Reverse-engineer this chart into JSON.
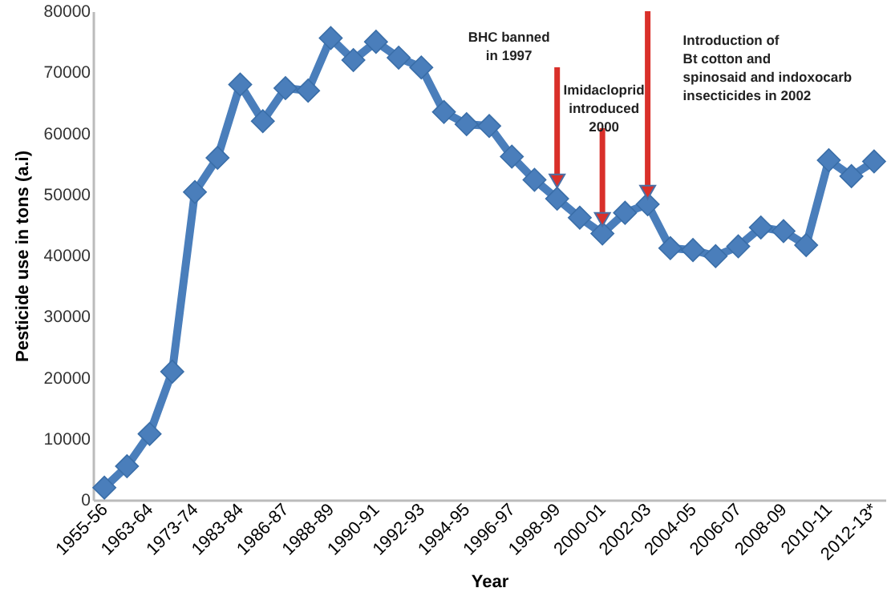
{
  "chart_data": {
    "type": "line",
    "xlabel": "Year",
    "ylabel": "Pesticide use in tons (a.i)",
    "categories": [
      "1955-56",
      null,
      "1963-64",
      null,
      "1973-74",
      null,
      "1983-84",
      null,
      "1986-87",
      null,
      "1988-89",
      null,
      "1990-91",
      null,
      "1992-93",
      null,
      "1994-95",
      null,
      "1996-97",
      null,
      "1998-99",
      null,
      "2000-01",
      null,
      "2002-03",
      null,
      "2004-05",
      null,
      "2006-07",
      null,
      "2008-09",
      null,
      "2010-11",
      null,
      "2012-13*"
    ],
    "series": [
      {
        "color": "#4a7ebb",
        "values": [
          2000,
          5500,
          10800,
          21000,
          50400,
          56000,
          68000,
          62000,
          67400,
          67000,
          75600,
          72000,
          75000,
          72400,
          70800,
          63500,
          61500,
          61200,
          56200,
          52400,
          49300,
          46200,
          43600,
          47000,
          48400,
          41200,
          40900,
          39900,
          41500,
          44600,
          44000,
          41700,
          55600,
          53000,
          55400
        ]
      }
    ],
    "ylim": [
      0,
      80000
    ],
    "yticks": [
      0,
      10000,
      20000,
      30000,
      40000,
      50000,
      60000,
      70000,
      80000
    ],
    "marker": "diamond",
    "annotations": [
      "BHC banned\nin 1997",
      "Imidacloprid\nintroduced\n2000",
      "Introduction of\nBt cotton and\nspinosaid and indoxocarb\ninsecticides in 2002"
    ]
  }
}
